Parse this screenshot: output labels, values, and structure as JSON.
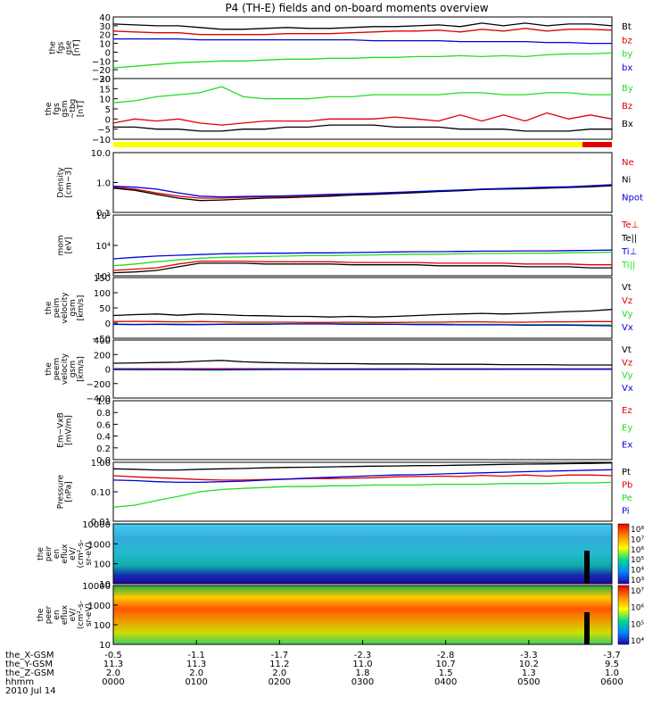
{
  "title": "P4 (TH-E) fields and on-board moments overview",
  "colors": {
    "black": "#000000",
    "red": "#e00000",
    "green": "#22dd22",
    "blue": "#0000dd",
    "yellow": "#ffff00"
  },
  "chart_data": [
    {
      "type": "line",
      "ylabel": [
        "the",
        "fgs",
        "gse",
        "[nT]"
      ],
      "ticks": [
        "40",
        "30",
        "20",
        "10",
        "0",
        "−10",
        "−20",
        "−30"
      ],
      "ylim": [
        -30,
        40
      ],
      "legend": [
        "Bt",
        "bz",
        "by",
        "bx"
      ],
      "legend_colors": [
        "#000000",
        "#e00000",
        "#22dd22",
        "#0000dd"
      ],
      "series": [
        {
          "name": "Bt",
          "color": "#000000",
          "values": [
            32,
            31,
            30,
            30,
            28,
            26,
            26,
            27,
            28,
            27,
            27,
            28,
            29,
            29,
            30,
            31,
            29,
            33,
            30,
            33,
            30,
            32,
            32,
            30
          ]
        },
        {
          "name": "bz",
          "color": "#e00000",
          "values": [
            24,
            23,
            22,
            22,
            20,
            20,
            20,
            20,
            21,
            21,
            21,
            22,
            23,
            24,
            24,
            25,
            23,
            26,
            24,
            27,
            24,
            26,
            26,
            25
          ]
        },
        {
          "name": "by",
          "color": "#22dd22",
          "values": [
            -18,
            -16,
            -14,
            -12,
            -11,
            -10,
            -10,
            -9,
            -8,
            -8,
            -7,
            -7,
            -6,
            -6,
            -5,
            -5,
            -4,
            -5,
            -4,
            -5,
            -3,
            -2,
            -2,
            -1
          ]
        },
        {
          "name": "bx",
          "color": "#0000dd",
          "values": [
            15,
            15,
            15,
            15,
            14,
            14,
            14,
            14,
            14,
            14,
            14,
            14,
            13,
            13,
            13,
            13,
            12,
            12,
            12,
            12,
            11,
            11,
            10,
            10
          ]
        }
      ]
    },
    {
      "type": "line",
      "ylabel": [
        "the",
        "fgs",
        "gsm",
        "~tbg",
        "[nT]"
      ],
      "ticks": [
        "20",
        "15",
        "10",
        "5",
        "0",
        "−5",
        "−10"
      ],
      "ylim": [
        -10,
        20
      ],
      "legend": [
        "By",
        "Bz",
        "Bx"
      ],
      "legend_colors": [
        "#22dd22",
        "#e00000",
        "#000000"
      ],
      "series": [
        {
          "name": "By",
          "color": "#22dd22",
          "values": [
            8,
            9,
            11,
            12,
            13,
            16,
            11,
            10,
            10,
            10,
            11,
            11,
            12,
            12,
            12,
            12,
            13,
            13,
            12,
            12,
            13,
            13,
            12,
            12
          ]
        },
        {
          "name": "Bz",
          "color": "#e00000",
          "values": [
            -2,
            0,
            -1,
            0,
            -2,
            -3,
            -2,
            -1,
            -1,
            -1,
            0,
            0,
            0,
            1,
            0,
            -1,
            2,
            -1,
            2,
            -1,
            3,
            0,
            2,
            0
          ]
        },
        {
          "name": "Bx",
          "color": "#000000",
          "values": [
            -4,
            -4,
            -5,
            -5,
            -6,
            -6,
            -5,
            -5,
            -4,
            -4,
            -3,
            -3,
            -3,
            -4,
            -4,
            -4,
            -5,
            -5,
            -5,
            -6,
            -6,
            -6,
            -5,
            -5
          ]
        }
      ]
    },
    {
      "type": "line",
      "scale": "log",
      "ylabel": [
        "Density",
        "[cm−3]"
      ],
      "ticks": [
        "10.0",
        "1.0",
        "0.1"
      ],
      "ylim": [
        0.1,
        10
      ],
      "legend": [
        "Ne",
        "Ni",
        "Npot"
      ],
      "legend_colors": [
        "#e00000",
        "#000000",
        "#0000dd"
      ],
      "series": [
        {
          "name": "Ne",
          "color": "#e00000",
          "values": [
            0.7,
            0.6,
            0.45,
            0.35,
            0.3,
            0.3,
            0.32,
            0.33,
            0.34,
            0.36,
            0.38,
            0.4,
            0.42,
            0.45,
            0.48,
            0.52,
            0.55,
            0.6,
            0.62,
            0.65,
            0.68,
            0.7,
            0.75,
            0.8
          ]
        },
        {
          "name": "Ni",
          "color": "#000000",
          "values": [
            0.65,
            0.55,
            0.4,
            0.3,
            0.25,
            0.26,
            0.28,
            0.3,
            0.31,
            0.33,
            0.35,
            0.38,
            0.4,
            0.43,
            0.46,
            0.5,
            0.53,
            0.58,
            0.6,
            0.62,
            0.65,
            0.68,
            0.72,
            0.78
          ]
        },
        {
          "name": "Npot",
          "color": "#0000dd",
          "values": [
            0.75,
            0.7,
            0.6,
            0.45,
            0.35,
            0.33,
            0.34,
            0.35,
            0.36,
            0.38,
            0.4,
            0.42,
            0.44,
            0.47,
            0.5,
            0.53,
            0.56,
            0.6,
            0.63,
            0.66,
            0.7,
            0.72,
            0.78,
            0.85
          ]
        }
      ]
    },
    {
      "type": "line",
      "scale": "log",
      "ylabel": [
        "mom",
        "[eV]"
      ],
      "ticks": [
        "10⁵",
        "10⁴",
        "10³"
      ],
      "ylim": [
        500,
        100000
      ],
      "legend": [
        "Te⊥",
        "Te||",
        "Ti⊥",
        "Ti||"
      ],
      "legend_colors": [
        "#e00000",
        "#000000",
        "#0000dd",
        "#22dd22"
      ],
      "series": [
        {
          "name": "Ti⊥",
          "color": "#0000dd",
          "values": [
            2200,
            2500,
            2800,
            3000,
            3200,
            3400,
            3500,
            3600,
            3600,
            3700,
            3700,
            3800,
            3900,
            4000,
            4100,
            4100,
            4200,
            4300,
            4300,
            4400,
            4400,
            4500,
            4600,
            4700
          ]
        },
        {
          "name": "Ti||",
          "color": "#22dd22",
          "values": [
            1200,
            1400,
            1700,
            2000,
            2300,
            2500,
            2600,
            2700,
            2800,
            2900,
            2900,
            3000,
            3100,
            3200,
            3300,
            3300,
            3400,
            3500,
            3500,
            3600,
            3600,
            3700,
            3800,
            3900
          ]
        },
        {
          "name": "Te⊥",
          "color": "#e00000",
          "values": [
            800,
            900,
            1000,
            1400,
            1800,
            1800,
            1800,
            1700,
            1700,
            1700,
            1700,
            1600,
            1600,
            1600,
            1600,
            1500,
            1500,
            1500,
            1500,
            1400,
            1400,
            1400,
            1300,
            1300
          ]
        },
        {
          "name": "Te||",
          "color": "#000000",
          "values": [
            650,
            700,
            800,
            1100,
            1500,
            1500,
            1500,
            1400,
            1400,
            1400,
            1400,
            1300,
            1300,
            1300,
            1300,
            1200,
            1200,
            1200,
            1200,
            1100,
            1100,
            1100,
            1000,
            1000
          ]
        }
      ]
    },
    {
      "type": "line",
      "ylabel": [
        "the",
        "peim",
        "velocity",
        "gsm",
        "[km/s]"
      ],
      "ticks": [
        "150",
        "100",
        "50",
        "0",
        "−50"
      ],
      "ylim": [
        -50,
        150
      ],
      "legend": [
        "Vt",
        "Vz",
        "Vy",
        "Vx"
      ],
      "legend_colors": [
        "#000000",
        "#e00000",
        "#22dd22",
        "#0000dd"
      ],
      "series": [
        {
          "name": "Vt",
          "color": "#000000",
          "values": [
            25,
            28,
            30,
            26,
            30,
            28,
            25,
            24,
            22,
            22,
            20,
            22,
            20,
            22,
            25,
            28,
            30,
            32,
            30,
            32,
            35,
            38,
            40,
            45
          ]
        },
        {
          "name": "Vz",
          "color": "#e00000",
          "values": [
            5,
            6,
            5,
            4,
            5,
            4,
            3,
            3,
            3,
            2,
            2,
            3,
            2,
            2,
            3,
            3,
            4,
            4,
            3,
            3,
            4,
            4,
            5,
            5
          ]
        },
        {
          "name": "Vy",
          "color": "#22dd22",
          "values": [
            -3,
            -4,
            -3,
            -3,
            -4,
            -3,
            -2,
            -2,
            -2,
            -2,
            -2,
            -2,
            -2,
            -3,
            -3,
            -3,
            -4,
            -4,
            -4,
            -5,
            -5,
            -5,
            -6,
            -6
          ]
        },
        {
          "name": "Vx",
          "color": "#0000dd",
          "values": [
            -4,
            -5,
            -4,
            -5,
            -5,
            -4,
            -4,
            -4,
            -3,
            -3,
            -3,
            -4,
            -4,
            -4,
            -5,
            -5,
            -6,
            -6,
            -6,
            -7,
            -7,
            -7,
            -8,
            -9
          ]
        }
      ]
    },
    {
      "type": "line",
      "ylabel": [
        "the",
        "peem",
        "velocity",
        "gsm",
        "[km/s]"
      ],
      "ticks": [
        "400",
        "200",
        "0",
        "−200",
        "−400"
      ],
      "ylim": [
        -400,
        400
      ],
      "legend": [
        "Vt",
        "Vz",
        "Vy",
        "Vx"
      ],
      "legend_colors": [
        "#000000",
        "#e00000",
        "#22dd22",
        "#0000dd"
      ],
      "series": [
        {
          "name": "Vt",
          "color": "#000000",
          "values": [
            80,
            85,
            90,
            95,
            110,
            120,
            100,
            90,
            85,
            80,
            75,
            75,
            70,
            70,
            70,
            65,
            65,
            65,
            60,
            60,
            60,
            55,
            55,
            55
          ]
        },
        {
          "name": "Vz",
          "color": "#e00000",
          "values": [
            5,
            5,
            4,
            4,
            5,
            5,
            4,
            4,
            3,
            3,
            3,
            3,
            3,
            3,
            2,
            2,
            2,
            2,
            2,
            2,
            2,
            2,
            2,
            2
          ]
        },
        {
          "name": "Vy",
          "color": "#22dd22",
          "values": [
            -10,
            -12,
            -10,
            -12,
            -15,
            -15,
            -12,
            -10,
            -8,
            -8,
            -8,
            -7,
            -7,
            -7,
            -6,
            -6,
            -6,
            -6,
            -5,
            -5,
            -5,
            -5,
            -5,
            -5
          ]
        },
        {
          "name": "Vx",
          "color": "#0000dd",
          "values": [
            -5,
            -5,
            -6,
            -6,
            -8,
            -8,
            -6,
            -5,
            -5,
            -5,
            -4,
            -4,
            -4,
            -4,
            -4,
            -3,
            -3,
            -3,
            -3,
            -3,
            -3,
            -3,
            -3,
            -3
          ]
        }
      ]
    },
    {
      "type": "line",
      "ylabel": [
        "Em~VxB",
        "[mV/m]"
      ],
      "ticks": [
        "1.0",
        "0.8",
        "0.6",
        "0.4",
        "0.2",
        "0.0"
      ],
      "ylim": [
        0,
        1
      ],
      "legend": [
        "Ez",
        "Ey",
        "Ex"
      ],
      "legend_colors": [
        "#e00000",
        "#22dd22",
        "#0000dd"
      ],
      "series": []
    },
    {
      "type": "line",
      "scale": "log",
      "ylabel": [
        "Pressure",
        "[nPa]"
      ],
      "ticks": [
        "1.00",
        "0.10",
        "0.01"
      ],
      "ylim": [
        0.01,
        1
      ],
      "legend": [
        "Pt",
        "Pb",
        "Pe",
        "Pi"
      ],
      "legend_colors": [
        "#000000",
        "#e00000",
        "#22dd22",
        "#0000dd"
      ],
      "series": [
        {
          "name": "Pt",
          "color": "#000000",
          "values": [
            0.6,
            0.58,
            0.55,
            0.55,
            0.58,
            0.6,
            0.62,
            0.65,
            0.67,
            0.68,
            0.7,
            0.72,
            0.74,
            0.75,
            0.77,
            0.78,
            0.8,
            0.82,
            0.85,
            0.87,
            0.88,
            0.9,
            0.92,
            0.95
          ]
        },
        {
          "name": "Pb",
          "color": "#e00000",
          "values": [
            0.35,
            0.32,
            0.3,
            0.28,
            0.26,
            0.25,
            0.25,
            0.26,
            0.27,
            0.28,
            0.28,
            0.29,
            0.3,
            0.32,
            0.33,
            0.34,
            0.33,
            0.36,
            0.34,
            0.37,
            0.34,
            0.37,
            0.37,
            0.35
          ]
        },
        {
          "name": "Pe",
          "color": "#22dd22",
          "values": [
            0.03,
            0.035,
            0.05,
            0.07,
            0.1,
            0.12,
            0.13,
            0.14,
            0.15,
            0.15,
            0.16,
            0.16,
            0.17,
            0.17,
            0.17,
            0.18,
            0.18,
            0.18,
            0.19,
            0.19,
            0.19,
            0.2,
            0.2,
            0.21
          ]
        },
        {
          "name": "Pi",
          "color": "#0000dd",
          "values": [
            0.25,
            0.24,
            0.22,
            0.21,
            0.21,
            0.22,
            0.23,
            0.25,
            0.27,
            0.29,
            0.31,
            0.33,
            0.35,
            0.37,
            0.38,
            0.4,
            0.42,
            0.44,
            0.46,
            0.48,
            0.5,
            0.52,
            0.54,
            0.56
          ]
        }
      ]
    },
    {
      "type": "heatmap",
      "ylabel": [
        "the",
        "peir",
        "en",
        "eflux",
        "eV/",
        "(cm²-s-",
        "sr-eV)"
      ],
      "ticks": [
        "10000",
        "1000",
        "100",
        "10"
      ],
      "colorbar_ticks": [
        "10⁸",
        "10⁷",
        "10⁶",
        "10⁵",
        "10⁴",
        "10³"
      ],
      "description": "ion energy flux spectrogram, high flux at low energies"
    },
    {
      "type": "heatmap",
      "ylabel": [
        "the",
        "peer",
        "en",
        "eflux",
        "eV/",
        "(cm²-s-",
        "sr-eV)"
      ],
      "ticks": [
        "10000",
        "1000",
        "100",
        "10"
      ],
      "colorbar_ticks": [
        "10⁷",
        "10⁶",
        "10⁵",
        "10⁴"
      ],
      "description": "electron energy flux spectrogram, peak near 1-10 keV"
    }
  ],
  "xaxis": {
    "rows": [
      {
        "label": "the_X-GSM",
        "values": [
          "-0.5",
          "-1.1",
          "-1.7",
          "-2.3",
          "-2.8",
          "-3.3",
          "-3.7"
        ]
      },
      {
        "label": "the_Y-GSM",
        "values": [
          "11.3",
          "11.3",
          "11.2",
          "11.0",
          "10.7",
          "10.2",
          "9.5"
        ]
      },
      {
        "label": "the_Z-GSM",
        "values": [
          "2.0",
          "2.0",
          "2.0",
          "1.8",
          "1.5",
          "1.3",
          "1.0"
        ]
      },
      {
        "label": "hhmm",
        "values": [
          "0000",
          "0100",
          "0200",
          "0300",
          "0400",
          "0500",
          "0600"
        ]
      }
    ],
    "date": "2010 Jul 14"
  }
}
